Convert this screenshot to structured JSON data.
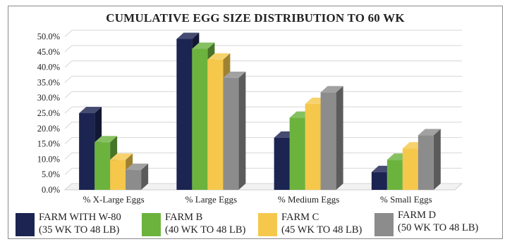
{
  "chart_data": {
    "type": "bar",
    "title": "CUMULATIVE EGG SIZE DISTRIBUTION TO 60 WK",
    "categories": [
      "% X-Large Eggs",
      "% Large Eggs",
      "% Medium Eggs",
      "% Small Eggs"
    ],
    "series": [
      {
        "name": "FARM WITH W-80",
        "subtitle": "(35 WK TO 48 LB)",
        "color": "#1c2452",
        "values": [
          25.0,
          49.2,
          17.0,
          5.8
        ]
      },
      {
        "name": "FARM B",
        "subtitle": "(40 WK TO 48 LB)",
        "color": "#6cb33e",
        "values": [
          15.5,
          46.0,
          23.5,
          9.8
        ]
      },
      {
        "name": "FARM C",
        "subtitle": "(45 WK TO 48 LB)",
        "color": "#f5c84c",
        "values": [
          9.8,
          42.5,
          28.0,
          13.5
        ]
      },
      {
        "name": "FARM D",
        "subtitle": "(50 WK TO 48 LB)",
        "color": "#8c8c8c",
        "values": [
          6.5,
          36.5,
          31.8,
          17.8
        ]
      }
    ],
    "y_ticks": [
      "0.0%",
      "5.0%",
      "10.0%",
      "15.0%",
      "20.0%",
      "25.0%",
      "30.0%",
      "35.0%",
      "40.0%",
      "45.0%",
      "50.0%"
    ],
    "ylim": [
      0,
      50
    ],
    "xlabel": "",
    "ylabel": "",
    "grid": true,
    "legend_position": "bottom",
    "style": "3d-clustered-column"
  }
}
